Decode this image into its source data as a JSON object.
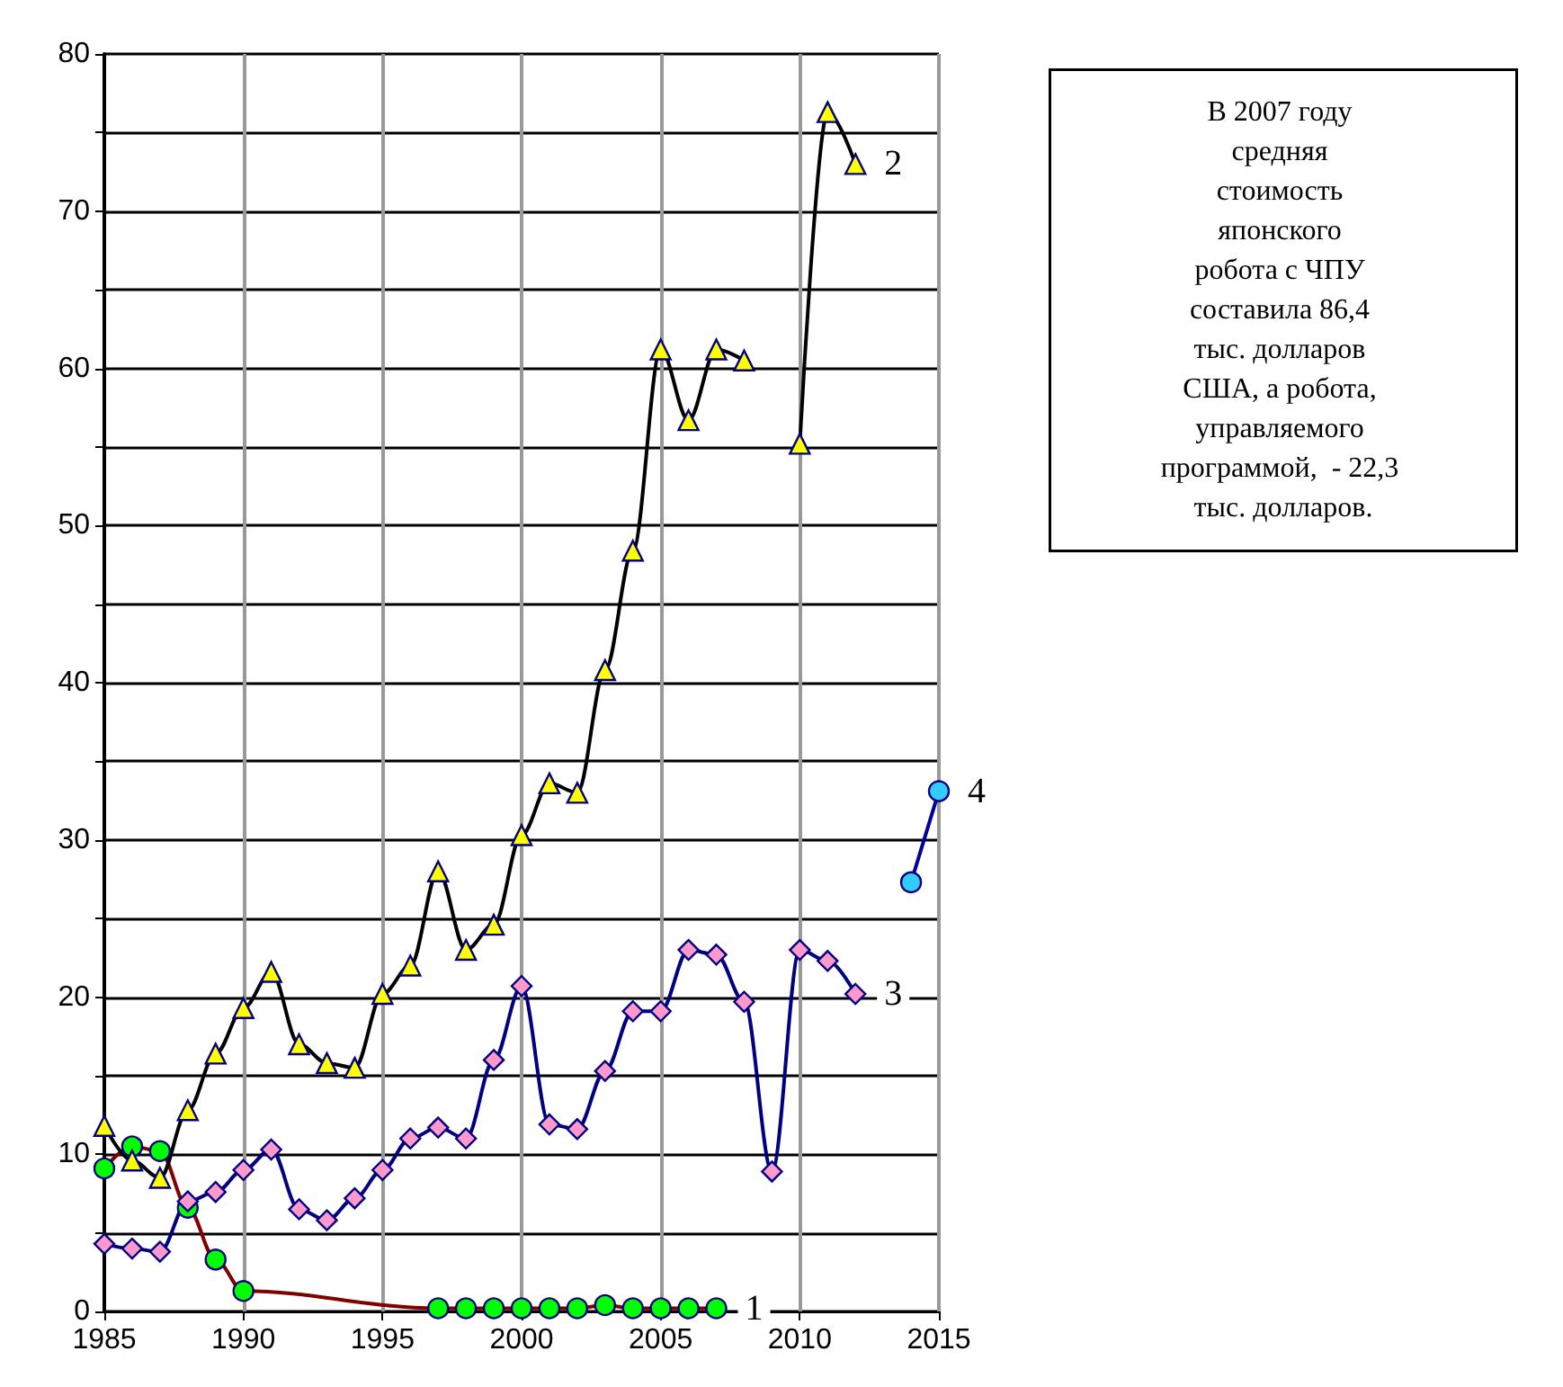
{
  "chart_data": {
    "type": "line",
    "annotations": [
      "В 2007 году средняя стоимость японского робота с ЧПУ составила 86,4 тыс. долларов США, а робота, управляемого программой,  - 22,3 тыс. долларов."
    ],
    "xlim": [
      1985,
      2015
    ],
    "xticks": [
      1985,
      1990,
      1995,
      2000,
      2005,
      2010,
      2015
    ],
    "ylim": [
      0,
      80
    ],
    "yticks": [
      0,
      {
        "value": 5,
        "label": null
      },
      10,
      {
        "value": 15,
        "label": null
      },
      20,
      {
        "value": 25,
        "label": null
      },
      30,
      {
        "value": 35,
        "label": null
      },
      40,
      {
        "value": 45,
        "label": null
      },
      50,
      {
        "value": 55,
        "label": null
      },
      60,
      {
        "value": 65,
        "label": null
      },
      70,
      {
        "value": 75,
        "label": null
      },
      80
    ],
    "grid": true,
    "legend": false,
    "line_style": "solid",
    "series": [
      {
        "name": "1",
        "color": "#800000",
        "marker": "circle",
        "x": [
          1985,
          1986,
          1987,
          1988,
          1989,
          1990,
          1997,
          1998,
          1999,
          2000,
          2001,
          2002,
          2003,
          2004,
          2005,
          2006,
          2007
        ],
        "values": [
          9.1,
          10.5,
          10.2,
          6.6,
          3.3,
          1.3,
          0.2,
          0.2,
          0.2,
          0.2,
          0.2,
          0.2,
          0.4,
          0.2,
          0.2,
          0.2,
          0.2
        ],
        "colors": [
          "#00ff00",
          "#00ff00",
          "#00ff00",
          "#00ff00",
          "#00ff00",
          "#00ff00",
          "#00ff00",
          "#00ff00",
          "#00ff00",
          "#00ff00",
          "#00ff00",
          "#00ff00",
          "#00ff00",
          "#00ff00",
          "#00ff00",
          "#00ff00",
          "#00ff00"
        ]
      },
      {
        "name": "2",
        "color": "#000000",
        "marker": "triangle",
        "x": [
          1985,
          1986,
          1987,
          1988,
          1989,
          1990,
          1991,
          1992,
          1993,
          1994,
          1995,
          1996,
          1997,
          1998,
          1999,
          2000,
          2001,
          2002,
          2003,
          2004,
          2005,
          2006,
          2007,
          2008,
          2009,
          2010,
          2011,
          2012
        ],
        "values": [
          11.8,
          9.6,
          8.5,
          12.8,
          16.4,
          19.3,
          21.6,
          17.0,
          15.8,
          15.5,
          20.2,
          22.0,
          28.0,
          23.0,
          24.6,
          30.3,
          33.6,
          33.0,
          40.8,
          48.4,
          61.2,
          56.7,
          61.2,
          60.5,
          null,
          55.2,
          76.3,
          73.0
        ],
        "colors": [
          "#ffff00",
          "#ffff00",
          "#ffff00",
          "#ffff00",
          "#ffff00",
          "#ffff00",
          "#ffff00",
          "#ffff00",
          "#ffff00",
          "#ffff00",
          "#ffff00",
          "#ffff00",
          "#ffff00",
          "#ffff00",
          "#ffff00",
          "#ffff00",
          "#ffff00",
          "#ffff00",
          "#ffff00",
          "#ffff00",
          "#ffff00",
          "#ffff00",
          "#ffff00",
          "#ffff00",
          "#ffff00",
          "#ffff00",
          "#ffff00",
          "#ffff00"
        ]
      },
      {
        "name": "3",
        "color": "#000080",
        "marker": "diamond",
        "x": [
          1985,
          1986,
          1987,
          1988,
          1989,
          1990,
          1991,
          1992,
          1993,
          1994,
          1995,
          1996,
          1997,
          1998,
          1999,
          2000,
          2001,
          2002,
          2003,
          2004,
          2005,
          2006,
          2007,
          2008,
          2009,
          2010,
          2011,
          2012
        ],
        "values": [
          4.3,
          4.0,
          3.8,
          7.0,
          7.6,
          9.0,
          10.3,
          6.5,
          5.8,
          7.2,
          9.0,
          11.0,
          11.7,
          11.0,
          16.0,
          20.7,
          11.9,
          11.6,
          15.3,
          19.1,
          19.1,
          23.0,
          22.7,
          19.7,
          8.9,
          23.0,
          22.3,
          20.2
        ],
        "colors": [
          "#ff99cc",
          "#ff99cc",
          "#ff99cc",
          "#ff99cc",
          "#ff99cc",
          "#ff99cc",
          "#ff99cc",
          "#ff99cc",
          "#ff99cc",
          "#ff99cc",
          "#ff99cc",
          "#ff99cc",
          "#ff99cc",
          "#ff99cc",
          "#ff99cc",
          "#ff99cc",
          "#ff99cc",
          "#ff99cc",
          "#ff99cc",
          "#ff99cc",
          "#ff99cc",
          "#ff99cc",
          "#ff99cc",
          "#ff99cc",
          "#ff99cc",
          "#ff99cc",
          "#ff99cc",
          "#ff99cc"
        ]
      },
      {
        "name": "4",
        "color": "#000099",
        "marker": "circle",
        "x": [
          2014,
          2015
        ],
        "values": [
          27.3,
          33.1
        ],
        "colors": [
          "#33ccff",
          "#33ccff"
        ]
      }
    ]
  }
}
